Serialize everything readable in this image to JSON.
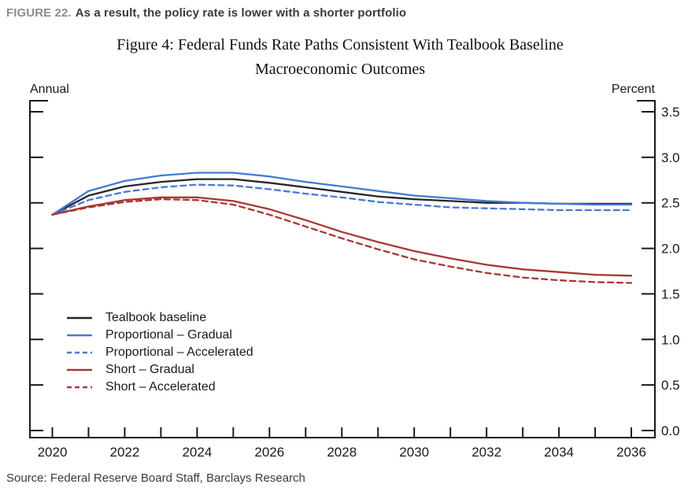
{
  "header": {
    "figure_label": "FIGURE 22.",
    "figure_caption": "As a result, the policy rate is lower with a shorter portfolio"
  },
  "source": "Source: Federal Reserve Board Staff, Barclays Research",
  "colors": {
    "baseline_black": "#262626",
    "proportional_blue": "#4679d4",
    "short_red": "#a93732",
    "axis": "#1a1a1a",
    "figure_label_gray": "#8c8c8c"
  },
  "chart_data": {
    "type": "line",
    "title_line1": "Figure 4: Federal Funds Rate Paths Consistent With Tealbook Baseline",
    "title_line2": "Macroeconomic Outcomes",
    "left_axis_label": "Annual",
    "right_axis_label": "Percent",
    "xlabel": "",
    "ylabel": "Percent",
    "x": [
      2020,
      2021,
      2022,
      2023,
      2024,
      2025,
      2026,
      2027,
      2028,
      2029,
      2030,
      2031,
      2032,
      2033,
      2034,
      2035,
      2036
    ],
    "x_tick_labels": [
      "2020",
      "2022",
      "2024",
      "2026",
      "2028",
      "2030",
      "2032",
      "2034",
      "2036"
    ],
    "y_ticks": [
      0.0,
      0.5,
      1.0,
      1.5,
      2.0,
      2.5,
      3.0,
      3.5
    ],
    "y_tick_labels": [
      "0.0",
      "0.5",
      "1.0",
      "1.5",
      "2.0",
      "2.5",
      "3.0",
      "3.5"
    ],
    "ylim": [
      0.0,
      3.5
    ],
    "grid": false,
    "legend_position": "inside lower-left",
    "series": [
      {
        "name": "Tealbook baseline",
        "color": "#262626",
        "dash": "solid",
        "values": [
          2.37,
          2.58,
          2.68,
          2.73,
          2.76,
          2.76,
          2.72,
          2.67,
          2.62,
          2.57,
          2.54,
          2.52,
          2.5,
          2.5,
          2.49,
          2.49,
          2.49
        ]
      },
      {
        "name": "Proportional – Gradual",
        "color": "#4679d4",
        "dash": "solid",
        "values": [
          2.37,
          2.63,
          2.74,
          2.8,
          2.83,
          2.83,
          2.79,
          2.73,
          2.68,
          2.63,
          2.58,
          2.55,
          2.52,
          2.5,
          2.49,
          2.48,
          2.48
        ]
      },
      {
        "name": "Proportional – Accelerated",
        "color": "#4679d4",
        "dash": "dashed",
        "values": [
          2.37,
          2.53,
          2.62,
          2.67,
          2.7,
          2.69,
          2.65,
          2.6,
          2.56,
          2.51,
          2.48,
          2.45,
          2.44,
          2.43,
          2.42,
          2.42,
          2.42
        ]
      },
      {
        "name": "Short – Gradual",
        "color": "#a93732",
        "dash": "solid",
        "values": [
          2.37,
          2.46,
          2.53,
          2.56,
          2.56,
          2.52,
          2.43,
          2.31,
          2.18,
          2.07,
          1.97,
          1.89,
          1.82,
          1.77,
          1.74,
          1.71,
          1.7
        ]
      },
      {
        "name": "Short – Accelerated",
        "color": "#a93732",
        "dash": "dashed",
        "values": [
          2.37,
          2.45,
          2.51,
          2.54,
          2.53,
          2.48,
          2.37,
          2.24,
          2.11,
          1.99,
          1.88,
          1.8,
          1.73,
          1.68,
          1.65,
          1.63,
          1.62
        ]
      }
    ]
  }
}
